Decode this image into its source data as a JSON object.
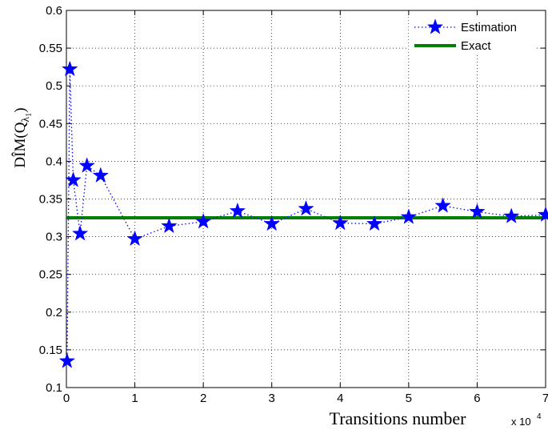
{
  "chart_data": {
    "type": "line",
    "xlabel": "Transitions number",
    "ylabel": "DÎM(Q",
    "ylabel_subscript": "λ",
    "ylabel_subsubscript": "1",
    "ylabel_close": ")",
    "x_multiplier_label": "x 10",
    "x_multiplier_exp": "4",
    "xlim": [
      0,
      7
    ],
    "ylim": [
      0.1,
      0.6
    ],
    "grid": true,
    "legend_position": "top-right",
    "x_ticks": [
      0,
      1,
      2,
      3,
      4,
      5,
      6,
      7
    ],
    "y_ticks": [
      0.1,
      0.15,
      0.2,
      0.25,
      0.3,
      0.35,
      0.4,
      0.45,
      0.5,
      0.55,
      0.6
    ],
    "x_tick_labels": [
      "0",
      "1",
      "2",
      "3",
      "4",
      "5",
      "6",
      "7"
    ],
    "y_tick_labels": [
      "0.1",
      "0.15",
      "0.2",
      "0.25",
      "0.3",
      "0.35",
      "0.4",
      "0.45",
      "0.5",
      "0.55",
      "0.6"
    ],
    "series": [
      {
        "name": "Estimation",
        "color": "#0000ff",
        "line_style": "dotted",
        "marker": "star",
        "x": [
          0.01,
          0.05,
          0.1,
          0.2,
          0.3,
          0.5,
          1,
          1.5,
          2,
          2.5,
          3,
          3.5,
          4,
          4.5,
          5,
          5.5,
          6,
          6.5,
          7
        ],
        "y": [
          0.135,
          0.522,
          0.375,
          0.304,
          0.394,
          0.381,
          0.297,
          0.314,
          0.32,
          0.334,
          0.317,
          0.337,
          0.318,
          0.317,
          0.326,
          0.341,
          0.333,
          0.327,
          0.329
        ]
      },
      {
        "name": "Exact",
        "color": "#008000",
        "line_style": "solid",
        "marker": "none",
        "x": [
          0,
          7
        ],
        "y": [
          0.325,
          0.325
        ]
      }
    ]
  }
}
